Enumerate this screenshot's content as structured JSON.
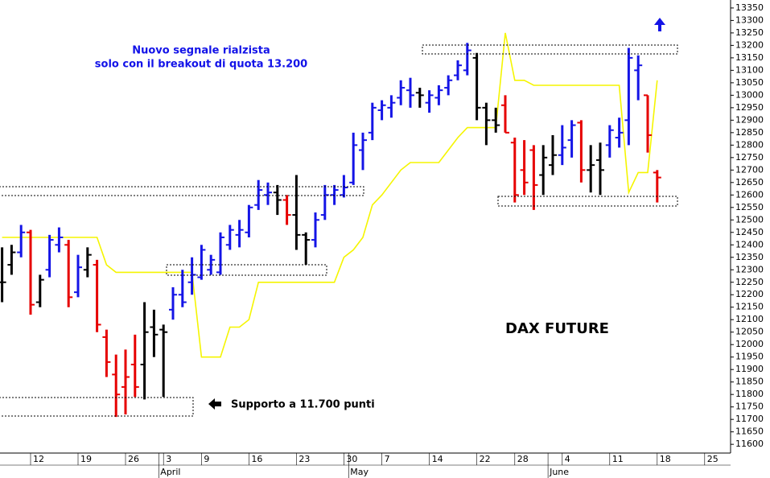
{
  "chart_data": {
    "type": "ohlc",
    "title": "DAX FUTURE",
    "annotations": [
      "Nuovo segnale rialzista",
      "solo con il breakout di quota 13.200",
      "Supporto a 11.700 punti"
    ],
    "categories": [
      null,
      null,
      null,
      "12",
      null,
      null,
      null,
      null,
      "19",
      null,
      null,
      null,
      null,
      "26",
      null,
      null,
      null,
      "3",
      null,
      null,
      null,
      "9",
      null,
      null,
      null,
      null,
      "16",
      null,
      null,
      null,
      null,
      "23",
      null,
      null,
      null,
      null,
      "30",
      null,
      null,
      null,
      "7",
      null,
      null,
      null,
      null,
      "14",
      null,
      null,
      null,
      null,
      "22",
      null,
      null,
      null,
      "28",
      null,
      null,
      null,
      null,
      "4",
      null,
      null,
      null,
      null,
      "11",
      null,
      null,
      null,
      null,
      "18",
      null,
      null,
      null,
      null,
      "25",
      null,
      null
    ],
    "month_labels": [
      null,
      null,
      null,
      null,
      null,
      null,
      null,
      null,
      null,
      null,
      null,
      null,
      null,
      null,
      null,
      null,
      null,
      "April",
      null,
      null,
      null,
      null,
      null,
      null,
      null,
      null,
      null,
      null,
      null,
      null,
      null,
      null,
      null,
      null,
      null,
      null,
      null,
      "May",
      null,
      null,
      null,
      null,
      null,
      null,
      null,
      null,
      null,
      null,
      null,
      null,
      null,
      null,
      null,
      null,
      null,
      null,
      null,
      null,
      "June",
      null,
      null,
      null,
      null,
      null,
      null,
      null,
      null,
      null,
      null,
      null,
      null,
      null,
      null,
      null,
      null,
      null,
      null
    ],
    "open": [
      12250,
      12320,
      12370,
      12450,
      12170,
      12300,
      12400,
      12400,
      12210,
      12300,
      12320,
      12030,
      11880,
      11830,
      11920,
      11920,
      12070,
      12060,
      12140,
      12200,
      12250,
      12270,
      12300,
      12290,
      12400,
      12440,
      12450,
      12560,
      12600,
      12610,
      12580,
      12520,
      12440,
      12420,
      12520,
      12600,
      12600,
      12650,
      12780,
      12850,
      12940,
      12950,
      12990,
      13020,
      13010,
      12970,
      12990,
      13030,
      13080,
      13100,
      13150,
      12950,
      12900,
      12960,
      12810,
      12700,
      12780,
      12680,
      12720,
      12760,
      12820,
      12890,
      12700,
      12740,
      12800,
      12830,
      12900,
      13100,
      13000,
      12690,
      null,
      null,
      null,
      null,
      null,
      null,
      null
    ],
    "high": [
      12390,
      12400,
      12480,
      12460,
      12280,
      12440,
      12470,
      12420,
      12360,
      12390,
      12340,
      12060,
      11960,
      11980,
      12040,
      12170,
      12140,
      12080,
      12230,
      12300,
      12350,
      12400,
      12360,
      12450,
      12480,
      12500,
      12560,
      12660,
      12650,
      12640,
      12600,
      12680,
      12450,
      12530,
      12640,
      12640,
      12680,
      12850,
      12850,
      12970,
      12980,
      13000,
      13060,
      13070,
      13030,
      13020,
      13040,
      13080,
      13140,
      13210,
      13170,
      12970,
      12950,
      13000,
      12830,
      12820,
      12800,
      12800,
      12840,
      12880,
      12900,
      12900,
      12800,
      12810,
      12880,
      12910,
      13190,
      13160,
      13000,
      12700,
      null,
      null,
      null,
      null,
      null,
      null,
      null
    ],
    "low": [
      12170,
      12280,
      12350,
      12120,
      12150,
      12270,
      12370,
      12150,
      12190,
      12270,
      12050,
      11870,
      11710,
      11720,
      11790,
      11780,
      11950,
      11790,
      12100,
      12150,
      12200,
      12260,
      12280,
      12280,
      12380,
      12390,
      12430,
      12540,
      12560,
      12520,
      12480,
      12380,
      12320,
      12390,
      12500,
      12560,
      12590,
      12640,
      12700,
      12820,
      12900,
      12910,
      12960,
      12950,
      12950,
      12930,
      12960,
      13000,
      13060,
      13080,
      12900,
      12800,
      12850,
      12850,
      12570,
      12600,
      12540,
      12600,
      12680,
      12720,
      12750,
      12650,
      12610,
      12600,
      12750,
      12790,
      12800,
      12980,
      12770,
      12570,
      null,
      null,
      null,
      null,
      null,
      null,
      null
    ],
    "close": [
      12250,
      12370,
      12450,
      12160,
      12260,
      12420,
      12430,
      12190,
      12310,
      12360,
      12080,
      11930,
      11800,
      11870,
      11830,
      12050,
      12040,
      12050,
      12200,
      12170,
      12280,
      12380,
      12340,
      12430,
      12460,
      12460,
      12550,
      12620,
      12610,
      12580,
      12520,
      12440,
      12420,
      12500,
      12600,
      12620,
      12630,
      12800,
      12820,
      12950,
      12960,
      12970,
      13030,
      13000,
      13000,
      13000,
      13020,
      13060,
      13120,
      13180,
      12950,
      12900,
      12880,
      12850,
      12600,
      12650,
      12640,
      12750,
      12760,
      12790,
      12880,
      12700,
      12720,
      12700,
      12860,
      12850,
      13150,
      13120,
      12840,
      12670,
      null,
      null,
      null,
      null,
      null,
      null,
      null
    ],
    "bar_colors": [
      "#000000",
      "#000000",
      "#1414e6",
      "#e60000",
      "#000000",
      "#1414e6",
      "#1414e6",
      "#e60000",
      "#1414e6",
      "#000000",
      "#e60000",
      "#e60000",
      "#e60000",
      "#e60000",
      "#e60000",
      "#000000",
      "#000000",
      "#000000",
      "#1414e6",
      "#1414e6",
      "#1414e6",
      "#1414e6",
      "#1414e6",
      "#1414e6",
      "#1414e6",
      "#1414e6",
      "#1414e6",
      "#1414e6",
      "#1414e6",
      "#000000",
      "#e60000",
      "#000000",
      "#000000",
      "#1414e6",
      "#1414e6",
      "#1414e6",
      "#1414e6",
      "#1414e6",
      "#1414e6",
      "#1414e6",
      "#1414e6",
      "#1414e6",
      "#1414e6",
      "#1414e6",
      "#000000",
      "#1414e6",
      "#1414e6",
      "#1414e6",
      "#1414e6",
      "#1414e6",
      "#000000",
      "#000000",
      "#000000",
      "#e60000",
      "#e60000",
      "#e60000",
      "#e60000",
      "#000000",
      "#000000",
      "#1414e6",
      "#1414e6",
      "#e60000",
      "#000000",
      "#000000",
      "#1414e6",
      "#1414e6",
      "#1414e6",
      "#1414e6",
      "#e60000",
      "#e60000",
      null,
      null,
      null,
      null,
      null,
      null,
      null
    ],
    "overlay": {
      "color": "#f5f500",
      "values": [
        12430,
        12430,
        12430,
        12430,
        12430,
        12430,
        12430,
        12430,
        12430,
        12430,
        12430,
        12320,
        12290,
        12290,
        12290,
        12290,
        12290,
        12290,
        12290,
        12290,
        12290,
        11950,
        11950,
        11950,
        12070,
        12070,
        12100,
        12250,
        12250,
        12250,
        12250,
        12250,
        12250,
        12250,
        12250,
        12250,
        12350,
        12380,
        12430,
        12560,
        12600,
        12650,
        12700,
        12730,
        12730,
        12730,
        12730,
        12780,
        12830,
        12870,
        12870,
        12870,
        12870,
        13250,
        13060,
        13060,
        13040,
        13040,
        13040,
        13040,
        13040,
        13040,
        13040,
        13040,
        13040,
        13040,
        12610,
        12690,
        12690,
        13060,
        null,
        null,
        null,
        null,
        null,
        null,
        null
      ]
    },
    "ylim": [
      11565,
      13382
    ],
    "yticks": [
      11600,
      11650,
      11700,
      11750,
      11800,
      11850,
      11900,
      11950,
      12000,
      12050,
      12100,
      12150,
      12200,
      12250,
      12300,
      12350,
      12400,
      12450,
      12500,
      12550,
      12600,
      12650,
      12700,
      12750,
      12800,
      12850,
      12900,
      12950,
      13000,
      13050,
      13100,
      13150,
      13200,
      13250,
      13300,
      13350
    ],
    "y_axis_side": "right",
    "grid": false
  }
}
